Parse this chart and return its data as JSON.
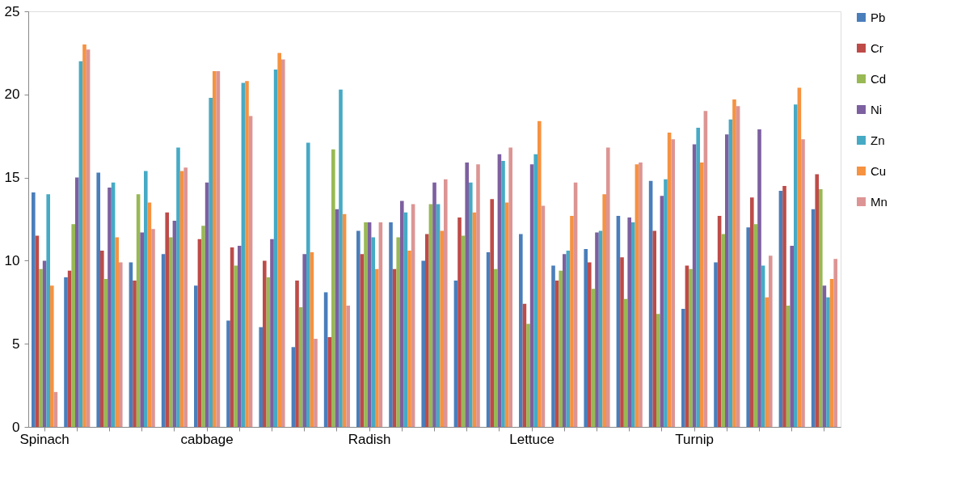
{
  "chart_data": {
    "type": "bar",
    "categories": [
      "Spinach",
      null,
      null,
      null,
      null,
      "cabbage",
      null,
      null,
      null,
      null,
      "Radish",
      null,
      null,
      null,
      null,
      "Lettuce",
      null,
      null,
      null,
      null,
      "Turnip",
      null,
      null,
      null,
      null
    ],
    "series": [
      {
        "name": "Pb",
        "color": "#4a7ebb",
        "values": [
          14.1,
          9.0,
          15.3,
          9.9,
          10.4,
          8.5,
          6.4,
          6.0,
          4.8,
          8.1,
          11.8,
          12.3,
          10.0,
          8.8,
          10.5,
          11.6,
          9.7,
          10.7,
          12.7,
          14.8,
          7.1,
          9.9,
          12.0,
          14.2,
          13.1
        ]
      },
      {
        "name": "Cr",
        "color": "#be4b48",
        "values": [
          11.5,
          9.4,
          10.6,
          8.8,
          12.9,
          11.3,
          10.8,
          10.0,
          8.8,
          5.4,
          10.4,
          9.5,
          11.6,
          12.6,
          13.7,
          7.4,
          8.8,
          9.9,
          10.2,
          11.8,
          9.7,
          12.7,
          13.8,
          14.5,
          15.2
        ]
      },
      {
        "name": "Cd",
        "color": "#98b954",
        "values": [
          9.5,
          12.2,
          8.9,
          14.0,
          11.4,
          12.1,
          9.7,
          9.0,
          7.2,
          16.7,
          12.3,
          11.4,
          13.4,
          11.5,
          9.5,
          6.2,
          9.4,
          8.3,
          7.7,
          6.8,
          9.5,
          11.6,
          12.2,
          7.3,
          14.3
        ]
      },
      {
        "name": "Ni",
        "color": "#7d60a0",
        "values": [
          10.0,
          15.0,
          14.4,
          11.7,
          12.4,
          14.7,
          10.9,
          11.3,
          10.4,
          13.1,
          12.3,
          13.6,
          14.7,
          15.9,
          16.4,
          15.8,
          10.4,
          11.7,
          12.6,
          13.9,
          17.0,
          17.6,
          17.9,
          10.9,
          8.5
        ]
      },
      {
        "name": "Zn",
        "color": "#46aac5",
        "values": [
          14.0,
          22.0,
          14.7,
          15.4,
          16.8,
          19.8,
          20.7,
          21.5,
          17.1,
          20.3,
          11.4,
          12.9,
          13.4,
          14.7,
          16.0,
          16.4,
          10.6,
          11.8,
          12.3,
          14.9,
          18.0,
          18.5,
          9.7,
          19.4,
          7.8
        ]
      },
      {
        "name": "Cu",
        "color": "#f69240",
        "values": [
          8.5,
          23.0,
          11.4,
          13.5,
          15.4,
          21.4,
          20.8,
          22.5,
          10.5,
          12.8,
          9.5,
          10.6,
          11.8,
          12.9,
          13.5,
          18.4,
          12.7,
          14.0,
          15.8,
          17.7,
          15.9,
          19.7,
          7.8,
          20.4,
          8.9
        ]
      },
      {
        "name": "Mn",
        "color": "#dc9594",
        "values": [
          2.1,
          22.7,
          9.9,
          11.9,
          15.6,
          21.4,
          18.7,
          22.1,
          5.3,
          7.3,
          12.3,
          13.4,
          14.9,
          15.8,
          16.8,
          13.3,
          14.7,
          16.8,
          15.9,
          17.3,
          19.0,
          19.3,
          10.3,
          17.3,
          10.1
        ]
      }
    ],
    "ylim": [
      0,
      25
    ],
    "yticks": [
      0,
      5,
      10,
      15,
      20,
      25
    ],
    "grid": false,
    "legend": "right"
  }
}
